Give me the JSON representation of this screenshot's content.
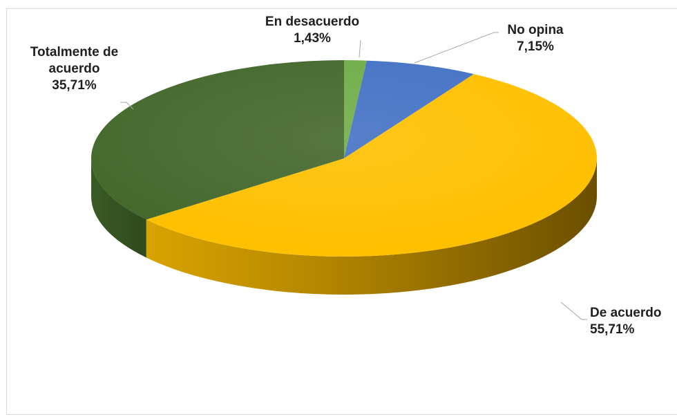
{
  "chart_data": {
    "type": "pie",
    "style": "3d-pie",
    "categories": [
      "En desacuerdo",
      "No opina",
      "De acuerdo",
      "Totalmente de acuerdo"
    ],
    "values": [
      1.43,
      7.15,
      55.71,
      35.71
    ],
    "value_labels": [
      "1,43%",
      "7,15%",
      "55,71%",
      "35,71%"
    ],
    "colors": [
      "#70ad47",
      "#4472c4",
      "#ffc000",
      "#43682b"
    ],
    "legend": "none",
    "data_label_lines": [
      [
        "En desacuerdo",
        "1,43%"
      ],
      [
        "No opina",
        "7,15%"
      ],
      [
        "De acuerdo",
        "55,71%"
      ],
      [
        "Totalmente de",
        "acuerdo",
        "35,71%"
      ]
    ]
  }
}
